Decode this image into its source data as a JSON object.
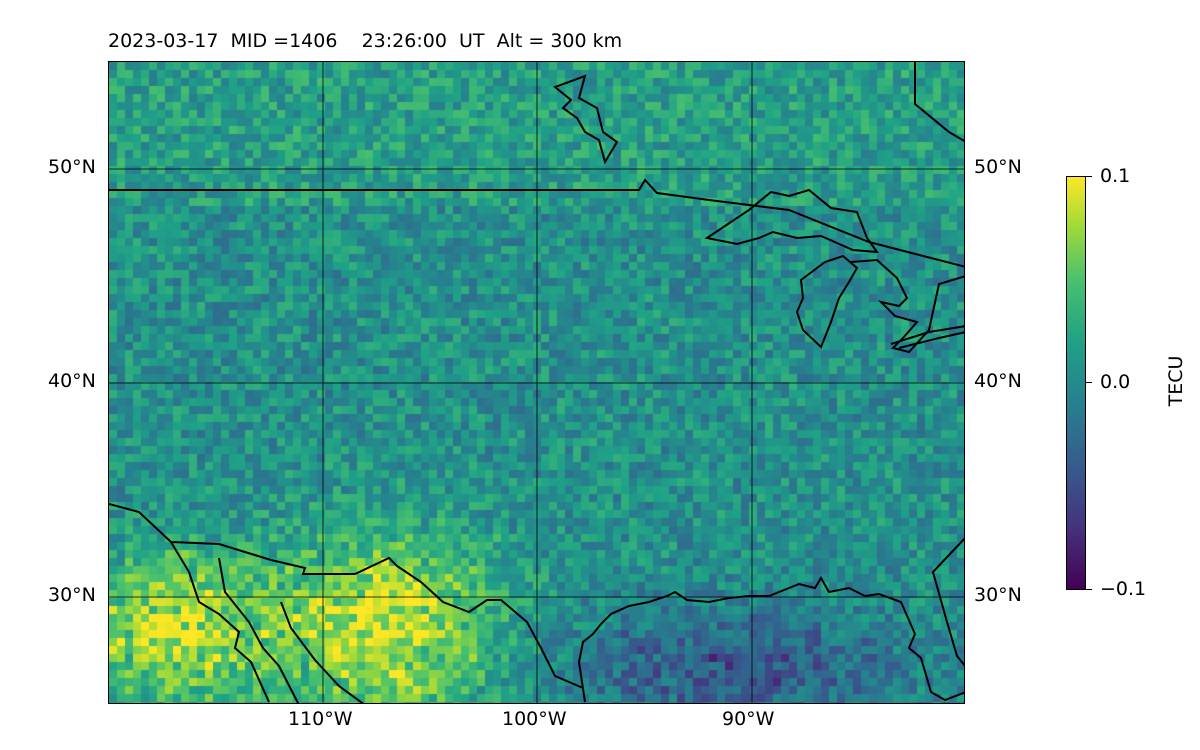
{
  "title": "2023-03-17  MID =1406    23:26:00  UT  Alt = 300 km",
  "map": {
    "type": "heatmap",
    "region": "central North America",
    "lon_range": [
      -120,
      -80
    ],
    "lat_range": [
      25,
      55
    ],
    "gridlines": true
  },
  "lat_labels": [
    "50°N",
    "40°N",
    "30°N"
  ],
  "lon_labels": [
    "110°W",
    "100°W",
    "90°W"
  ],
  "colorbar": {
    "label": "TECU",
    "ticks": [
      "0.1",
      "0.0",
      "−0.1"
    ],
    "range": [
      -0.1,
      0.1
    ],
    "colormap": "viridis"
  }
}
